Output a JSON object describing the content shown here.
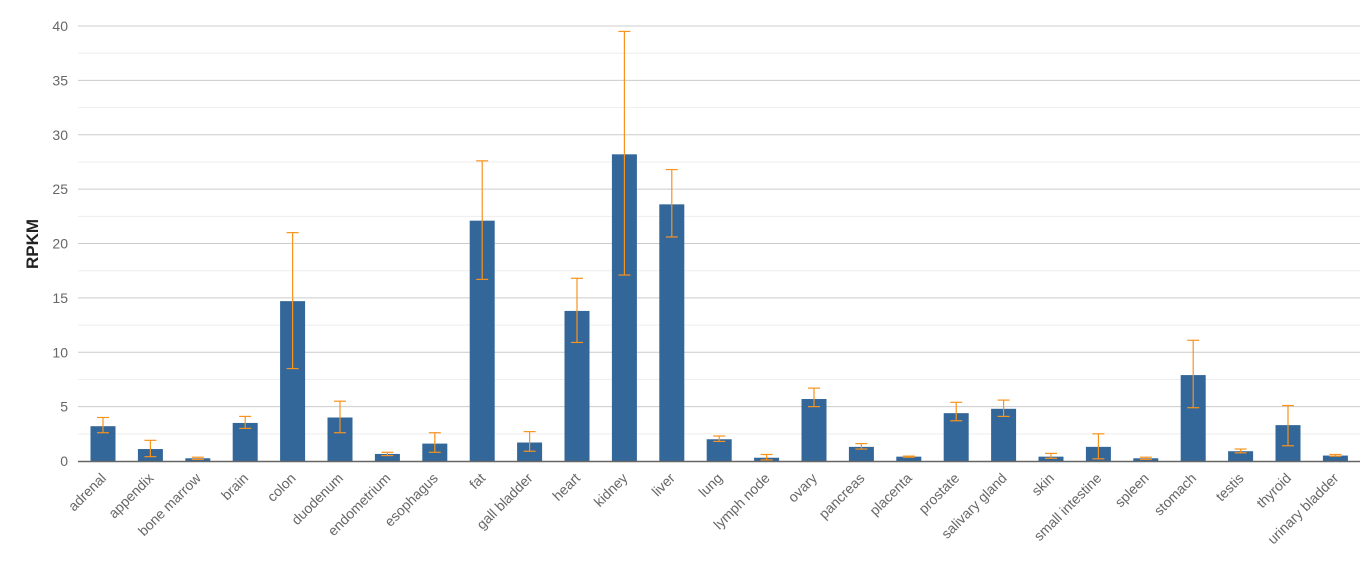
{
  "chart_data": {
    "type": "bar",
    "title": "",
    "xlabel": "",
    "ylabel": "RPKM",
    "ylim": [
      0,
      40
    ],
    "yticks": [
      0,
      5,
      10,
      15,
      20,
      25,
      30,
      35,
      40
    ],
    "grid": true,
    "legend": "none",
    "colors": {
      "bar": "#336699",
      "error_bar": "#F7931E",
      "grid_major": "#cccccc",
      "grid_minor": "#eeeeee",
      "axis": "#666666"
    },
    "categories": [
      "adrenal",
      "appendix",
      "bone marrow",
      "brain",
      "colon",
      "duodenum",
      "endometrium",
      "esophagus",
      "fat",
      "gall bladder",
      "heart",
      "kidney",
      "liver",
      "lung",
      "lymph node",
      "ovary",
      "pancreas",
      "placenta",
      "prostate",
      "salivary gland",
      "skin",
      "small intestine",
      "spleen",
      "stomach",
      "testis",
      "thyroid",
      "urinary bladder"
    ],
    "series": [
      {
        "values": [
          3.2,
          1.1,
          0.25,
          3.5,
          14.7,
          4.0,
          0.65,
          1.6,
          22.1,
          1.7,
          13.8,
          28.2,
          23.6,
          2.0,
          0.3,
          5.7,
          1.3,
          0.4,
          4.4,
          4.8,
          0.4,
          1.3,
          0.25,
          7.9,
          0.9,
          3.3,
          0.5
        ],
        "err_low": [
          2.6,
          0.4,
          0.15,
          3.0,
          8.5,
          2.6,
          0.5,
          0.8,
          16.7,
          0.9,
          10.9,
          17.1,
          20.6,
          1.8,
          0.1,
          5.0,
          1.1,
          0.35,
          3.7,
          4.1,
          0.25,
          0.2,
          0.15,
          4.9,
          0.75,
          1.4,
          0.45
        ],
        "err_high": [
          4.0,
          1.9,
          0.35,
          4.1,
          21.0,
          5.5,
          0.8,
          2.6,
          27.6,
          2.7,
          16.8,
          39.5,
          26.8,
          2.3,
          0.6,
          6.7,
          1.6,
          0.45,
          5.4,
          5.6,
          0.7,
          2.5,
          0.35,
          11.1,
          1.1,
          5.1,
          0.6
        ]
      }
    ]
  }
}
